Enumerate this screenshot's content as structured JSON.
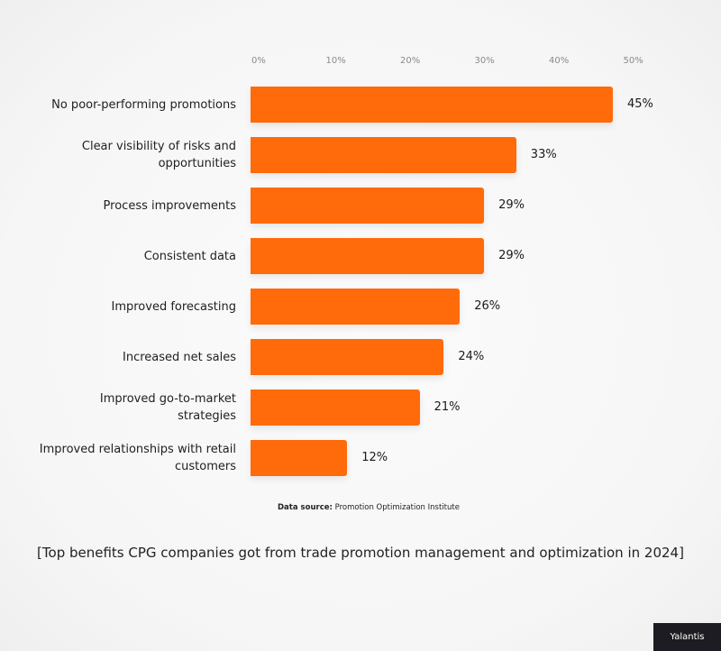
{
  "chart_data": {
    "type": "bar",
    "orientation": "horizontal",
    "categories": [
      "No poor-performing promotions",
      "Clear visibility of risks and opportunities",
      "Process improvements",
      "Consistent data",
      "Improved forecasting",
      "Increased net sales",
      "Improved go-to-market strategies",
      "Improved relationships with retail customers"
    ],
    "values": [
      45,
      33,
      29,
      29,
      26,
      24,
      21,
      12
    ],
    "value_labels": [
      "45%",
      "33%",
      "29%",
      "29%",
      "26%",
      "24%",
      "21%",
      "12%"
    ],
    "x_ticks": [
      "0%",
      "10%",
      "20%",
      "30%",
      "40%",
      "50%"
    ],
    "xlim": [
      0,
      50
    ],
    "grid": false,
    "bar_color": "#ff6a0a",
    "title": "",
    "xlabel": "",
    "ylabel": ""
  },
  "source": {
    "label": "Data source:",
    "text": "Promotion Optimization Institute"
  },
  "caption": "[Top benefits CPG companies got from trade promotion management and optimization in 2024]",
  "logo": "Yalantis"
}
